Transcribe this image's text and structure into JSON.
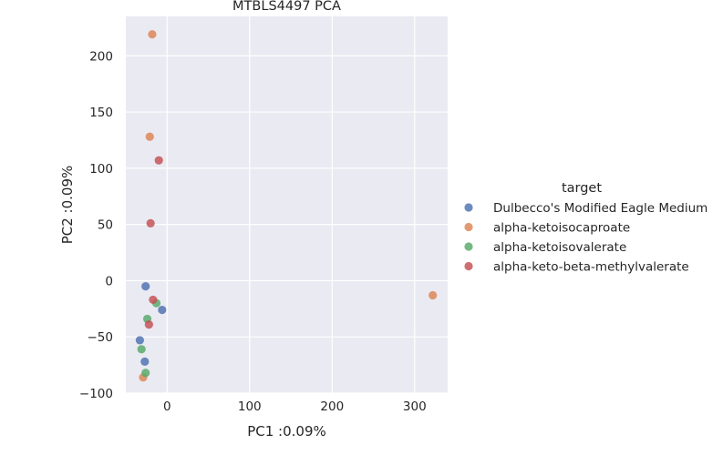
{
  "chart_data": {
    "type": "scatter",
    "title": "MTBLS4497 PCA",
    "xlabel": "PC1 :0.09%",
    "ylabel": "PC2 :0.09%",
    "xlim": [
      -50,
      340
    ],
    "ylim": [
      -100,
      235
    ],
    "xticks": [
      0,
      100,
      200,
      300
    ],
    "yticks": [
      -100,
      -50,
      0,
      50,
      100,
      150,
      200
    ],
    "xtick_labels": [
      "0",
      "100",
      "200",
      "300"
    ],
    "ytick_labels": [
      "−100",
      "−50",
      "0",
      "50",
      "100",
      "150",
      "200"
    ],
    "grid": true,
    "legend": {
      "title": "target",
      "placement": "right-outside"
    },
    "series": [
      {
        "name": "Dulbecco's Modified Eagle Medium",
        "color": "#4c72b0",
        "points": [
          [
            -26,
            -5
          ],
          [
            -6,
            -26
          ],
          [
            -33,
            -53
          ],
          [
            -27,
            -72
          ]
        ]
      },
      {
        "name": "alpha-ketoisocaproate",
        "color": "#dd8452",
        "points": [
          [
            -18,
            219
          ],
          [
            -21,
            128
          ],
          [
            322,
            -13
          ],
          [
            -29,
            -86
          ]
        ]
      },
      {
        "name": "alpha-ketoisovalerate",
        "color": "#55a868",
        "points": [
          [
            -13,
            -20
          ],
          [
            -24,
            -34
          ],
          [
            -31,
            -61
          ],
          [
            -26,
            -82
          ]
        ]
      },
      {
        "name": "alpha-keto-beta-methylvalerate",
        "color": "#c44e52",
        "points": [
          [
            -10,
            107
          ],
          [
            -20,
            51
          ],
          [
            -17,
            -17
          ],
          [
            -22,
            -39
          ]
        ]
      }
    ]
  }
}
